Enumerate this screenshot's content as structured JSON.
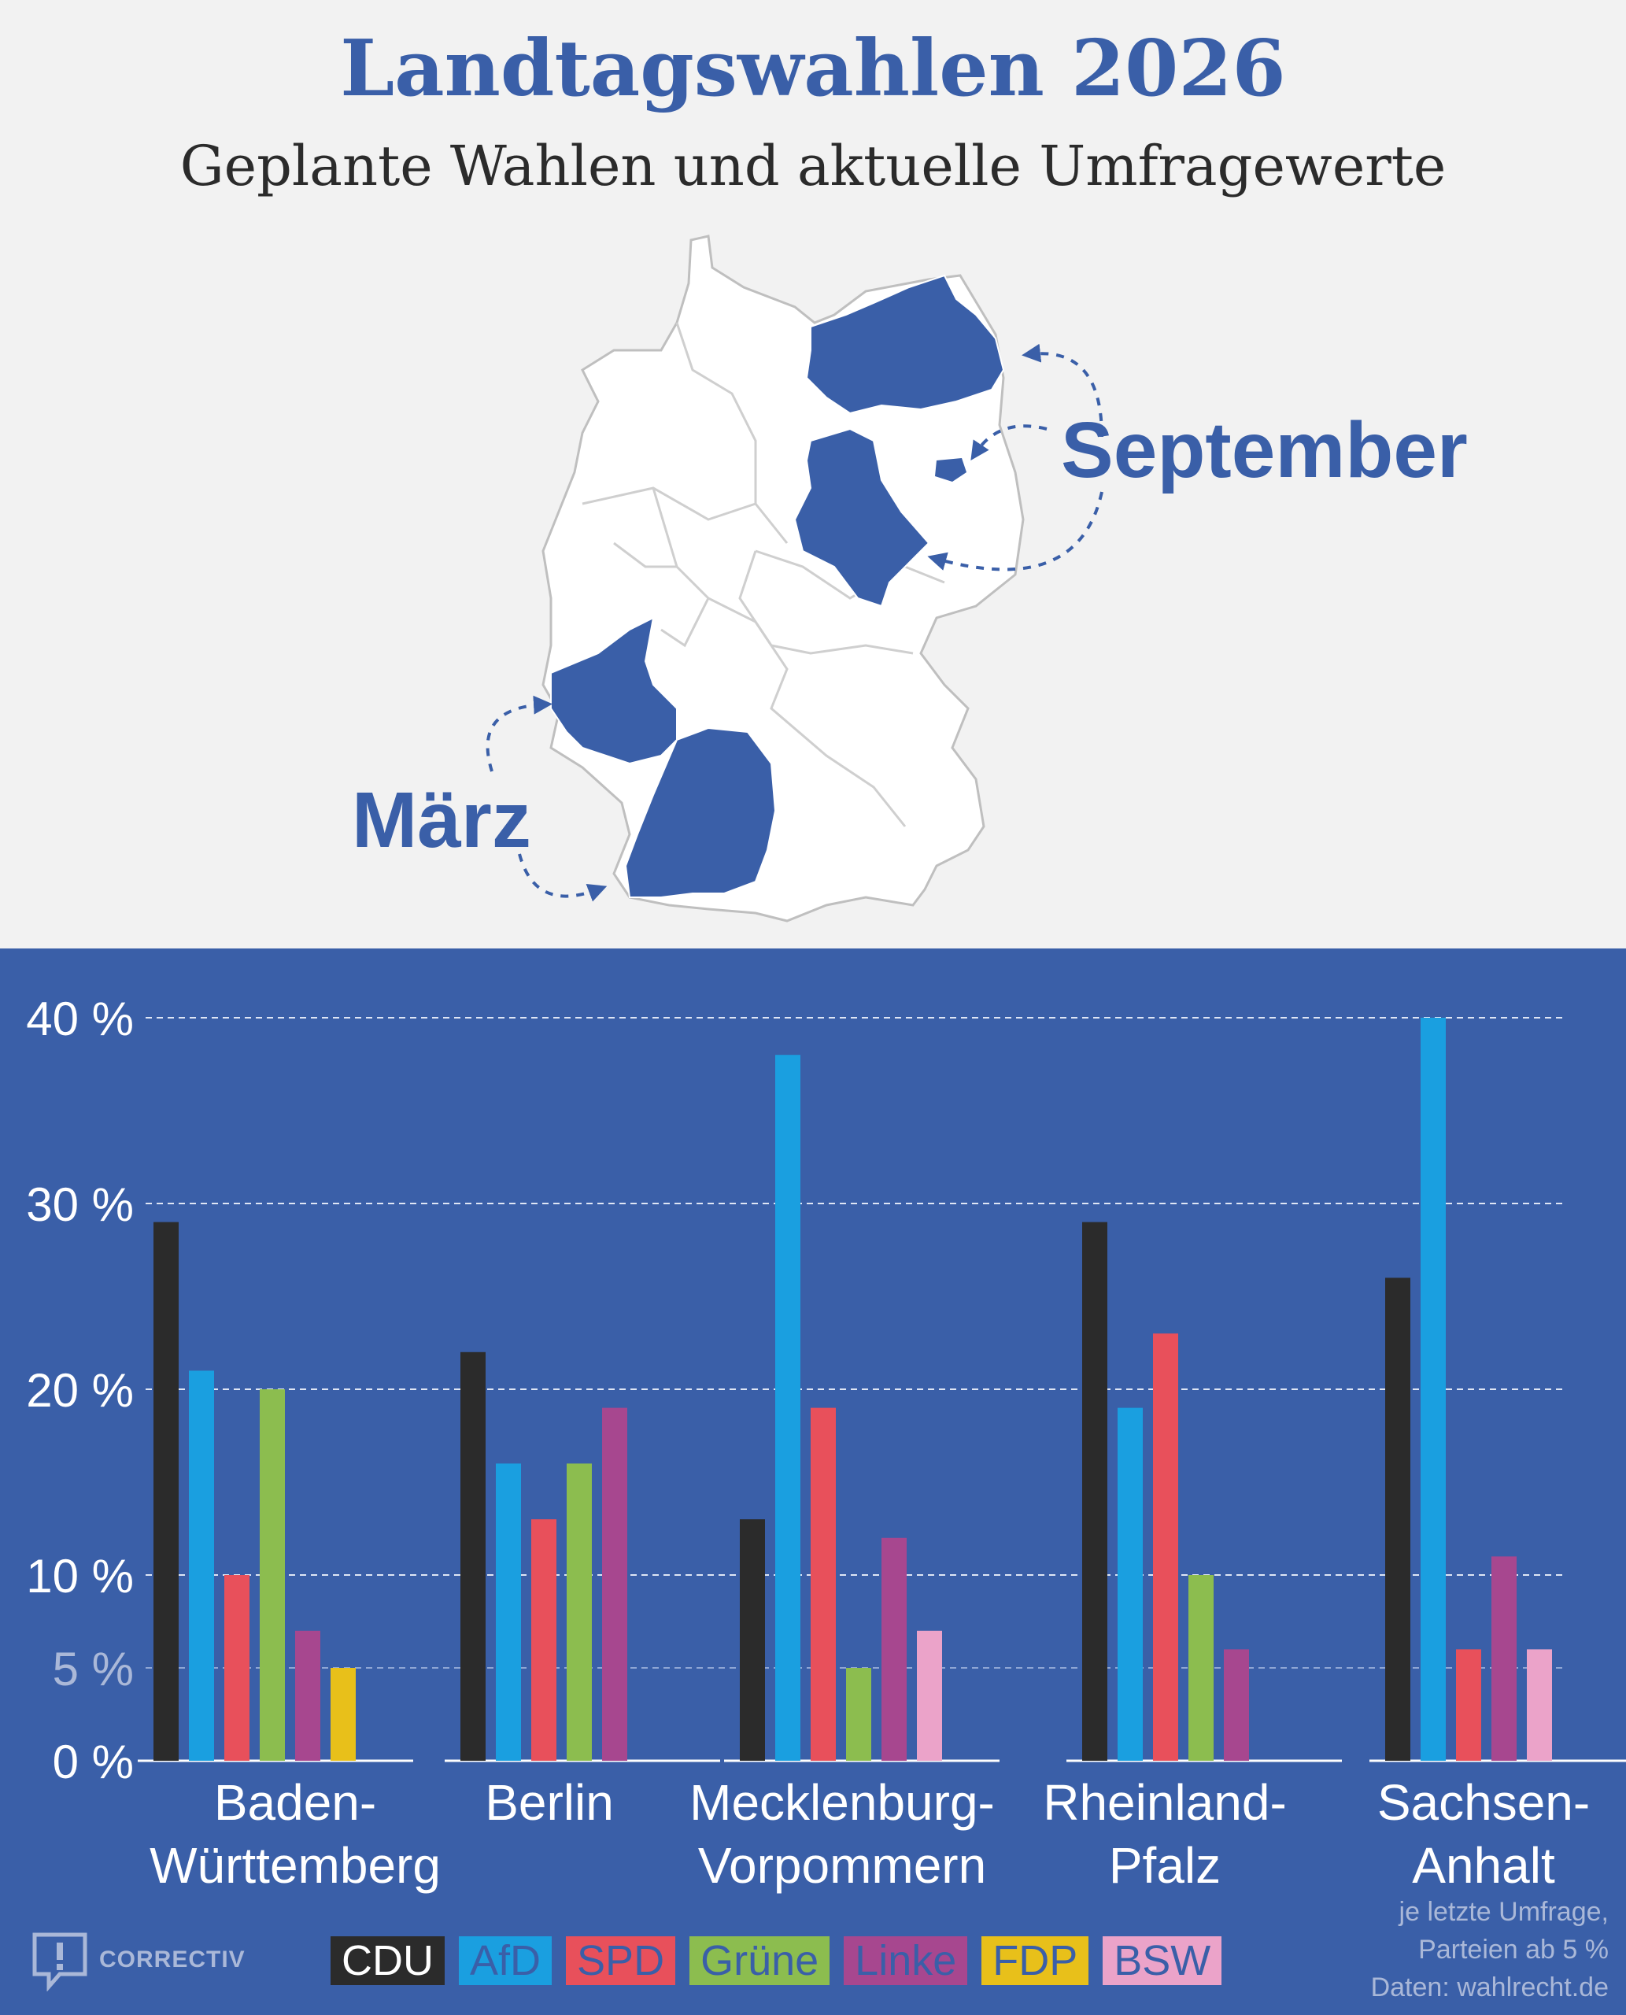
{
  "header": {
    "title": "Landtagswahlen 2026",
    "subtitle": "Geplante Wahlen und aktuelle Umfragewerte"
  },
  "map": {
    "label_september": "September",
    "label_maerz": "März",
    "highlight_color": "#3a5fa8"
  },
  "chart_data": {
    "type": "bar",
    "categories": [
      "Baden-\nWürttemberg",
      "Berlin",
      "Mecklenburg-\nVorpommern",
      "Rheinland-\nPfalz",
      "Sachsen-\nAnhalt"
    ],
    "yticks": [
      "0 %",
      "5 %",
      "10 %",
      "20 %",
      "30 %",
      "40 %"
    ],
    "ylim": [
      0,
      40
    ],
    "grid": true,
    "legend_position": "bottom",
    "series": [
      {
        "name": "CDU",
        "color": "#2b2b2b",
        "values": [
          29,
          22,
          13,
          29,
          26
        ]
      },
      {
        "name": "AfD",
        "color": "#1a9fe0",
        "values": [
          21,
          16,
          38,
          19,
          40
        ]
      },
      {
        "name": "SPD",
        "color": "#e8505b",
        "values": [
          10,
          13,
          19,
          23,
          6
        ]
      },
      {
        "name": "Grüne",
        "color": "#8cbd4f",
        "values": [
          20,
          16,
          5,
          10,
          null
        ]
      },
      {
        "name": "Linke",
        "color": "#a7478f",
        "values": [
          7,
          19,
          12,
          6,
          11
        ]
      },
      {
        "name": "FDP",
        "color": "#e8c01a",
        "values": [
          5,
          null,
          null,
          null,
          null
        ]
      },
      {
        "name": "BSW",
        "color": "#eba3c9",
        "values": [
          null,
          null,
          7,
          null,
          6
        ]
      }
    ]
  },
  "footer": {
    "note_lines": [
      "je letzte Umfrage,",
      "Parteien ab 5 %",
      "Daten: wahlrecht.de"
    ],
    "brand": "CORRECTIV"
  }
}
